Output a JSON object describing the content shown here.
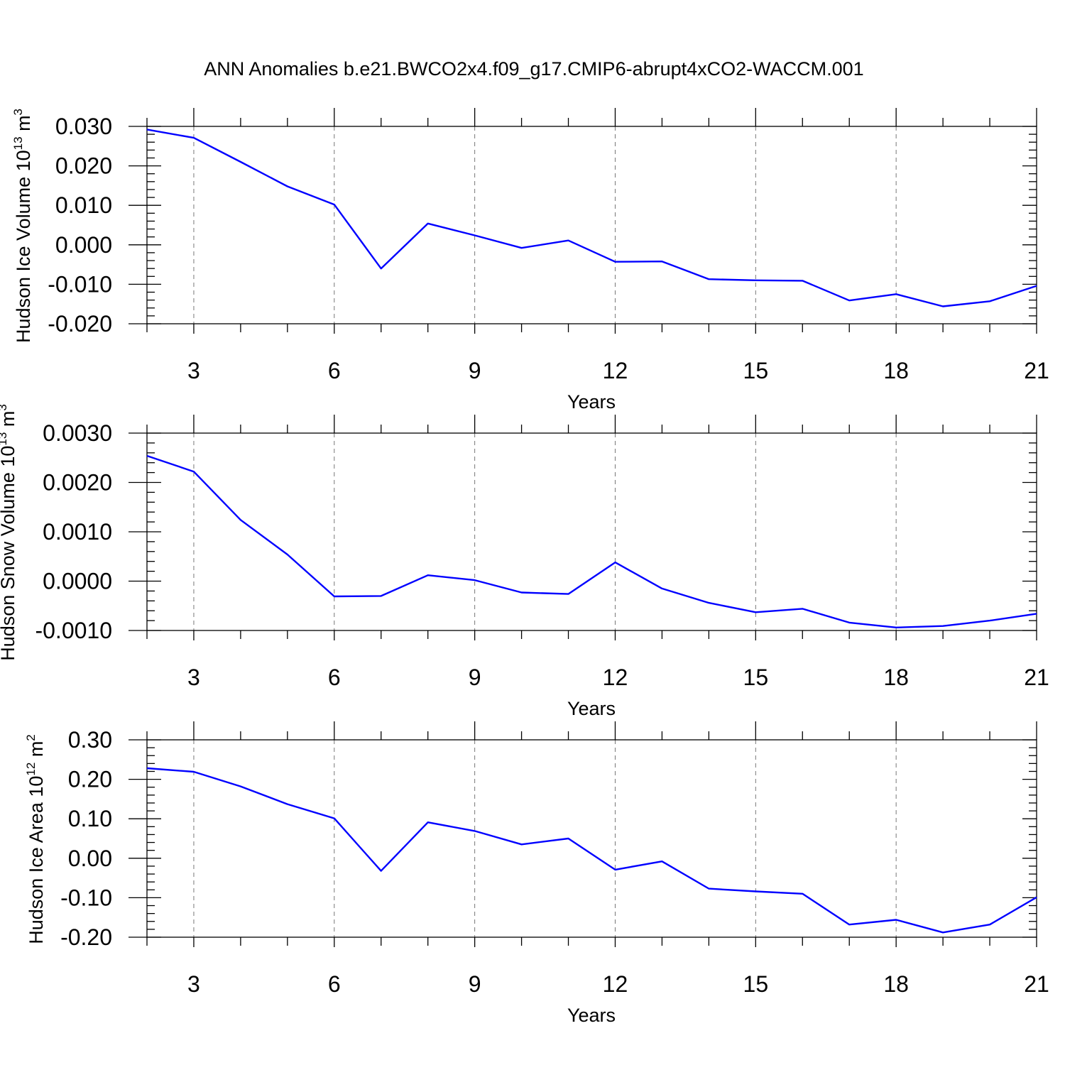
{
  "title": "ANN Anomalies b.e21.BWCO2x4.f09_g17.CMIP6-abrupt4xCO2-WACCM.001",
  "colors": {
    "line": "#0000ff",
    "grid": "#777777",
    "frame": "#000000"
  },
  "chart_data": [
    {
      "type": "line",
      "ylabel": "Hudson Ice Volume 10",
      "ylabel_exponent": "13",
      "ylabel_unit": " m",
      "ylabel_unit_exponent": "3",
      "xlabel": "Years",
      "xlim": [
        2,
        21
      ],
      "ylim": [
        -0.02,
        0.033
      ],
      "x_ticks": [
        3,
        6,
        9,
        12,
        15,
        18,
        21
      ],
      "x_tick_labels": [
        "3",
        "6",
        "9",
        "12",
        "15",
        "18",
        "21"
      ],
      "y_ticks": [
        0.03,
        0.02,
        0.01,
        0.0,
        -0.01,
        -0.02
      ],
      "y_tick_labels": [
        "0.030",
        "0.020",
        "0.010",
        "0.000",
        "-0.010",
        "-0.020"
      ],
      "y_minor_step": 0.002,
      "grid": "vertical dashed at major x ticks",
      "x": [
        2,
        3,
        4,
        5,
        6,
        7,
        8,
        9,
        10,
        11,
        12,
        13,
        14,
        15,
        16,
        17,
        18,
        19,
        20,
        21
      ],
      "values": [
        0.0292,
        0.0271,
        0.021,
        0.0148,
        0.0102,
        -0.006,
        0.0054,
        0.0024,
        -0.0008,
        0.0011,
        -0.0043,
        -0.0042,
        -0.0087,
        -0.009,
        -0.0091,
        -0.0141,
        -0.0125,
        -0.0156,
        -0.0143,
        -0.0104
      ]
    },
    {
      "type": "line",
      "ylabel": "Hudson Snow Volume 10",
      "ylabel_exponent": "13",
      "ylabel_unit": " m",
      "ylabel_unit_exponent": "3",
      "xlabel": "Years",
      "xlim": [
        2,
        21
      ],
      "ylim": [
        -0.001,
        0.003
      ],
      "x_ticks": [
        3,
        6,
        9,
        12,
        15,
        18,
        21
      ],
      "x_tick_labels": [
        "3",
        "6",
        "9",
        "12",
        "15",
        "18",
        "21"
      ],
      "y_ticks": [
        0.003,
        0.002,
        0.001,
        0.0,
        -0.001
      ],
      "y_tick_labels": [
        "0.0030",
        "0.0020",
        "0.0010",
        "0.0000",
        "-0.0010"
      ],
      "y_minor_step": 0.0002,
      "grid": "vertical dashed at major x ticks",
      "x": [
        2,
        3,
        4,
        5,
        6,
        7,
        8,
        9,
        10,
        11,
        12,
        13,
        14,
        15,
        16,
        17,
        18,
        19,
        20,
        21
      ],
      "values": [
        0.00254,
        0.00222,
        0.00124,
        0.00054,
        -0.00031,
        -0.0003,
        0.00012,
        2e-05,
        -0.00023,
        -0.00026,
        0.00038,
        -0.00015,
        -0.00044,
        -0.00063,
        -0.00056,
        -0.00084,
        -0.00094,
        -0.00091,
        -0.0008,
        -0.00066
      ]
    },
    {
      "type": "line",
      "ylabel": "Hudson Ice Area 10",
      "ylabel_exponent": "12",
      "ylabel_unit": " m",
      "ylabel_unit_exponent": "2",
      "xlabel": "Years",
      "xlim": [
        2,
        21
      ],
      "ylim": [
        -0.2,
        0.3
      ],
      "x_ticks": [
        3,
        6,
        9,
        12,
        15,
        18,
        21
      ],
      "x_tick_labels": [
        "3",
        "6",
        "9",
        "12",
        "15",
        "18",
        "21"
      ],
      "y_ticks": [
        0.3,
        0.2,
        0.1,
        0.0,
        -0.1,
        -0.2
      ],
      "y_tick_labels": [
        "0.30",
        "0.20",
        "0.10",
        "0.00",
        "-0.10",
        "-0.20"
      ],
      "y_minor_step": 0.02,
      "grid": "vertical dashed at major x ticks",
      "x": [
        2,
        3,
        4,
        5,
        6,
        7,
        8,
        9,
        10,
        11,
        12,
        13,
        14,
        15,
        16,
        17,
        18,
        19,
        20,
        21
      ],
      "values": [
        0.228,
        0.219,
        0.182,
        0.137,
        0.101,
        -0.032,
        0.091,
        0.069,
        0.035,
        0.05,
        -0.029,
        -0.008,
        -0.077,
        -0.084,
        -0.09,
        -0.168,
        -0.156,
        -0.188,
        -0.168,
        -0.099
      ]
    }
  ]
}
